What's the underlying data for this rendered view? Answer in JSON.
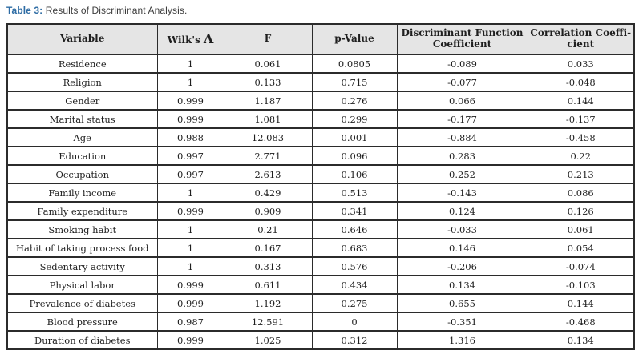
{
  "caption": {
    "label": "Table 3:",
    "text": " Results of Discriminant Analysis."
  },
  "colors": {
    "caption_accent": "#2e6ca4",
    "header_background": "#e5e5e5",
    "border": "#2b2b2b",
    "text": "#1f1f1f"
  },
  "table": {
    "columns": [
      {
        "name": "variable",
        "lines": [
          "Variable"
        ]
      },
      {
        "name": "wilks-lambda",
        "lines": [
          "Wilk's"
        ],
        "lambda": "Λ"
      },
      {
        "name": "f",
        "lines": [
          "F"
        ]
      },
      {
        "name": "p-value",
        "lines": [
          "p-Value"
        ]
      },
      {
        "name": "discriminant-function-coefficient",
        "lines": [
          "Discriminant Function",
          "Coefficient"
        ]
      },
      {
        "name": "correlation-coefficient",
        "lines": [
          "Correlation Coeffi-",
          "cient"
        ]
      }
    ],
    "rows": [
      [
        "Residence",
        "1",
        "0.061",
        "0.0805",
        "-0.089",
        "0.033"
      ],
      [
        "Religion",
        "1",
        "0.133",
        "0.715",
        "-0.077",
        "-0.048"
      ],
      [
        "Gender",
        "0.999",
        "1.187",
        "0.276",
        "0.066",
        "0.144"
      ],
      [
        "Marital status",
        "0.999",
        "1.081",
        "0.299",
        "-0.177",
        "-0.137"
      ],
      [
        "Age",
        "0.988",
        "12.083",
        "0.001",
        "-0.884",
        "-0.458"
      ],
      [
        "Education",
        "0.997",
        "2.771",
        "0.096",
        "0.283",
        "0.22"
      ],
      [
        "Occupation",
        "0.997",
        "2.613",
        "0.106",
        "0.252",
        "0.213"
      ],
      [
        "Family income",
        "1",
        "0.429",
        "0.513",
        "-0.143",
        "0.086"
      ],
      [
        "Family expenditure",
        "0.999",
        "0.909",
        "0.341",
        "0.124",
        "0.126"
      ],
      [
        "Smoking habit",
        "1",
        "0.21",
        "0.646",
        "-0.033",
        "0.061"
      ],
      [
        "Habit of taking process food",
        "1",
        "0.167",
        "0.683",
        "0.146",
        "0.054"
      ],
      [
        "Sedentary activity",
        "1",
        "0.313",
        "0.576",
        "-0.206",
        "-0.074"
      ],
      [
        "Physical labor",
        "0.999",
        "0.611",
        "0.434",
        "0.134",
        "-0.103"
      ],
      [
        "Prevalence of diabetes",
        "0.999",
        "1.192",
        "0.275",
        "0.655",
        "0.144"
      ],
      [
        "Blood pressure",
        "0.987",
        "12.591",
        "0",
        "-0.351",
        "-0.468"
      ],
      [
        "Duration of diabetes",
        "0.999",
        "1.025",
        "0.312",
        "1.316",
        "0.134"
      ]
    ]
  }
}
